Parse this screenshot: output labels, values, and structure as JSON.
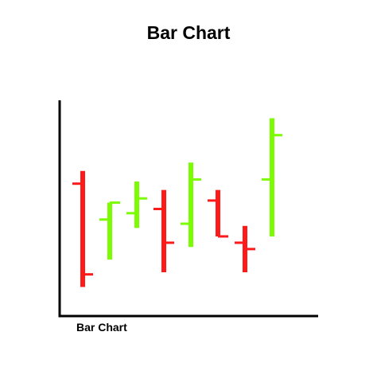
{
  "chart_data": {
    "type": "ohlc",
    "title": "Bar Chart",
    "xlabel": "Bar Chart",
    "ylabel": "",
    "ylim": [
      0,
      10
    ],
    "grid": false,
    "legend": "none",
    "colors": {
      "up": "#7CFC00",
      "down": "#FF1A1A",
      "axis": "#000000"
    },
    "bars": [
      {
        "open": 6.2,
        "high": 6.8,
        "low": 1.3,
        "close": 1.9
      },
      {
        "open": 4.5,
        "high": 5.3,
        "low": 2.6,
        "close": 5.3
      },
      {
        "open": 4.8,
        "high": 6.3,
        "low": 4.1,
        "close": 5.5
      },
      {
        "open": 5.0,
        "high": 5.9,
        "low": 2.0,
        "close": 3.4
      },
      {
        "open": 4.3,
        "high": 7.2,
        "low": 3.2,
        "close": 6.4
      },
      {
        "open": 5.4,
        "high": 5.9,
        "low": 3.7,
        "close": 3.7
      },
      {
        "open": 3.4,
        "high": 4.2,
        "low": 2.0,
        "close": 3.1
      },
      {
        "open": 6.4,
        "high": 9.3,
        "low": 3.7,
        "close": 8.5
      }
    ]
  }
}
